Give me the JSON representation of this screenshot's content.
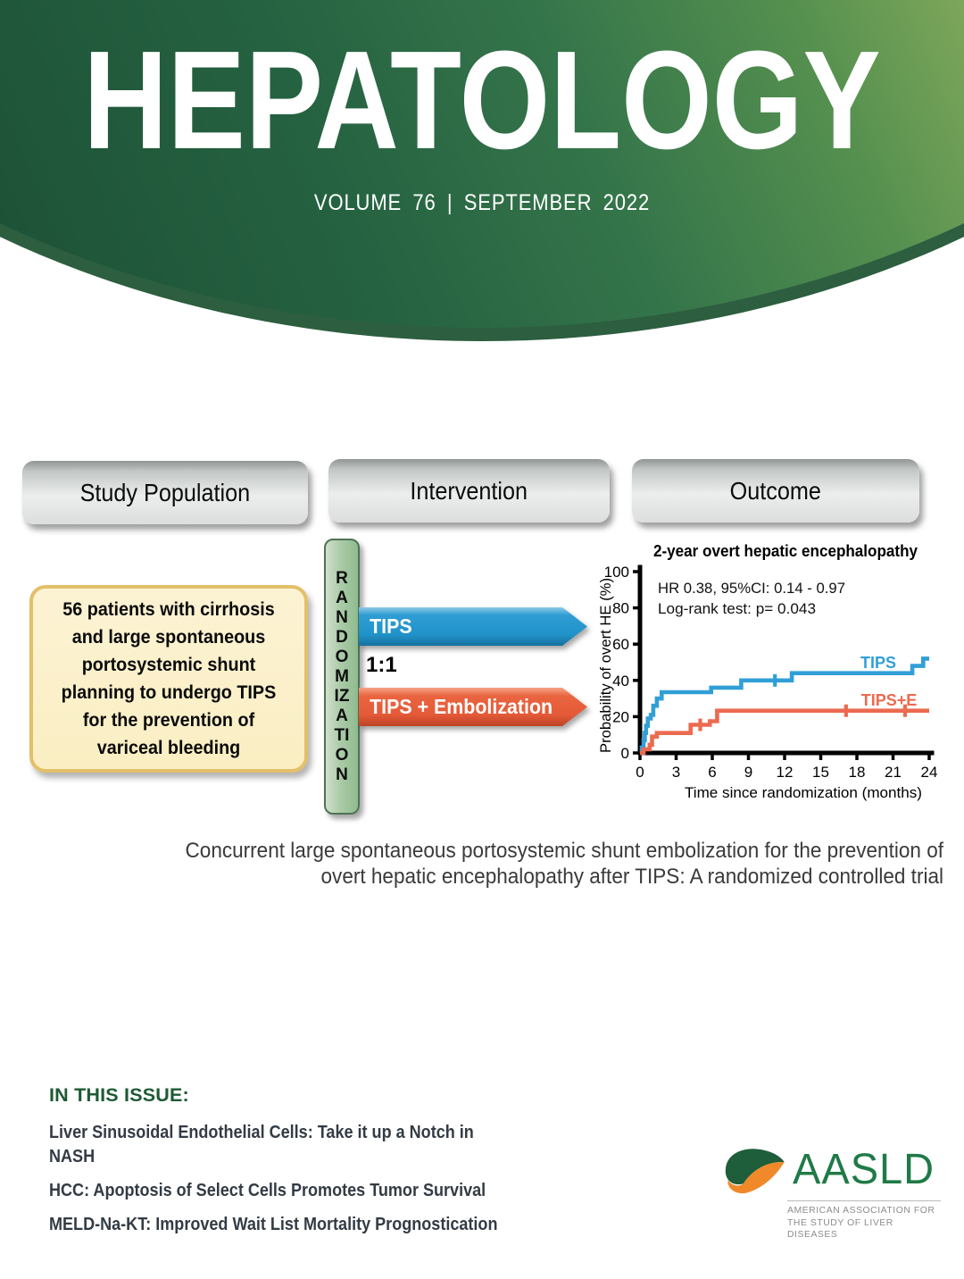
{
  "masthead": {
    "title": "HEPATOLOGY",
    "issue_line": "VOLUME 76 | SEPTEMBER 2022",
    "gradient_dark_green": "#1D5036",
    "gradient_light_green": "#84AA5C"
  },
  "diagram": {
    "columns": [
      {
        "label": "Study Population"
      },
      {
        "label": "Intervention"
      },
      {
        "label": "Outcome"
      }
    ],
    "population_box": {
      "lines": [
        "56 patients with cirrhosis",
        "and large spontaneous",
        "portosystemic shunt",
        "planning to undergo TIPS",
        "for the prevention of",
        "variceal bleeding"
      ],
      "fill": "#FAEEC2",
      "border": "#E3BF6A"
    },
    "randomization_label": "RANDOMIZATION",
    "randomization_fill": "#A9CBA6",
    "ratio_label": "1:1",
    "arms": [
      {
        "label": "TIPS",
        "color": "#2196CC"
      },
      {
        "label": "TIPS + Embolization",
        "color": "#E55A38"
      }
    ]
  },
  "chart_data": {
    "type": "line",
    "subtype": "kaplan-meier-step",
    "title": "2-year overt hepatic encephalopathy",
    "annotations": [
      "HR 0.38, 95%CI: 0.14 - 0.97",
      "Log-rank test: p= 0.043"
    ],
    "xlabel": "Time since randomization (months)",
    "ylabel": "Probability of overt HE (%)",
    "xlim": [
      0,
      24
    ],
    "ylim": [
      0,
      100
    ],
    "x_ticks": [
      0,
      3,
      6,
      9,
      12,
      15,
      18,
      21,
      24
    ],
    "y_ticks": [
      0,
      20,
      40,
      60,
      80,
      100
    ],
    "grid": false,
    "legend_position": "inline-labels",
    "series": [
      {
        "name": "TIPS",
        "color": "#319FD7",
        "steps": [
          [
            0,
            0
          ],
          [
            0.15,
            3
          ],
          [
            0.3,
            7
          ],
          [
            0.4,
            11
          ],
          [
            0.5,
            15
          ],
          [
            0.65,
            19
          ],
          [
            0.9,
            21
          ],
          [
            1.1,
            26
          ],
          [
            1.4,
            30
          ],
          [
            1.8,
            33.5
          ],
          [
            5.9,
            36
          ],
          [
            8.4,
            40
          ],
          [
            12.6,
            44
          ],
          [
            22.6,
            48
          ],
          [
            23.5,
            52
          ],
          [
            24,
            52
          ]
        ],
        "censors": [
          [
            11.2,
            40
          ]
        ]
      },
      {
        "name": "TIPS+E",
        "color": "#EC6A50",
        "steps": [
          [
            0,
            0
          ],
          [
            0.3,
            2
          ],
          [
            0.8,
            4.5
          ],
          [
            1.0,
            9
          ],
          [
            1.4,
            11
          ],
          [
            4.2,
            15.5
          ],
          [
            5.8,
            17.5
          ],
          [
            6.4,
            23.3
          ],
          [
            24,
            23.3
          ]
        ],
        "censors": [
          [
            5.0,
            15.5
          ],
          [
            17.1,
            23.3
          ],
          [
            22.0,
            23.3
          ]
        ]
      }
    ]
  },
  "caption": {
    "lines": [
      "Concurrent large spontaneous portosystemic shunt embolization for the prevention of",
      "overt hepatic encephalopathy after TIPS: A randomized controlled trial"
    ]
  },
  "in_this_issue": {
    "heading": "IN THIS ISSUE:",
    "heading_color": "#1D5A33",
    "items": [
      {
        "text": "Liver Sinusoidal Endothelial Cells: Take it up a Notch in\nNASH"
      },
      {
        "text": "HCC: Apoptosis of Select Cells Promotes Tumor Survival"
      },
      {
        "text": "MELD-Na-KT: Improved Wait List Mortality Prognostication"
      }
    ]
  },
  "publisher": {
    "name": "AASLD",
    "tagline": "AMERICAN ASSOCIATION FOR\nTHE STUDY OF LIVER DISEASES",
    "brand_green": "#1F7A47",
    "brand_orange": "#F0892A"
  }
}
